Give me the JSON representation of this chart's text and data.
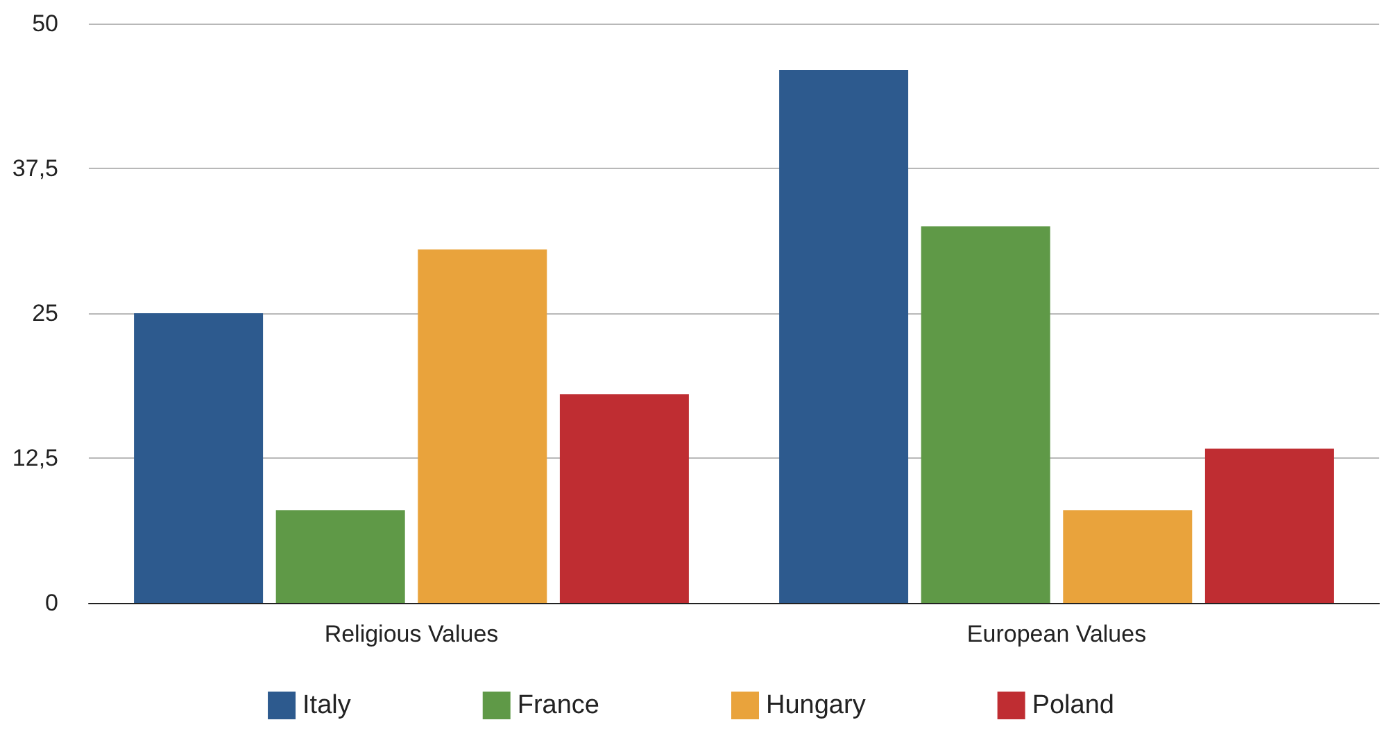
{
  "chart_data": {
    "type": "bar",
    "categories": [
      "Religious Values",
      "European Values"
    ],
    "series": [
      {
        "name": "Italy",
        "color": "#2d5a8e",
        "values": [
          25,
          46
        ]
      },
      {
        "name": "France",
        "color": "#5f9947",
        "values": [
          8,
          32.5
        ]
      },
      {
        "name": "Hungary",
        "color": "#e9a33c",
        "values": [
          30.5,
          8
        ]
      },
      {
        "name": "Poland",
        "color": "#bf2d32",
        "values": [
          18,
          13.3
        ]
      }
    ],
    "ylim": [
      0,
      50
    ],
    "yticks": [
      0,
      {
        "value": 12.5,
        "label": "12,5"
      },
      25,
      {
        "value": 37.5,
        "label": "37,5"
      },
      50
    ],
    "grid": "y",
    "legend": "bottom"
  }
}
